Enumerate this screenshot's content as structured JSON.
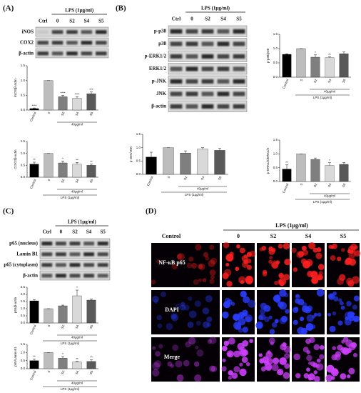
{
  "panel_labels": [
    "(A)",
    "(B)",
    "(C)",
    "(D)"
  ],
  "blots": [
    {
      "treatment": "LPS (1μg/ml)",
      "lanes": [
        "Ctrl",
        "0",
        "S2",
        "S4",
        "S5"
      ],
      "rows": [
        "iNOS",
        "COX2",
        "β-actin"
      ]
    },
    {
      "treatment": "LPS (1μg/ml)",
      "lanes": [
        "Ctrl",
        "0",
        "S2",
        "S4",
        "S5"
      ],
      "rows": [
        "p-p38",
        "p38",
        "p-ERK1/2",
        "ERK1/2",
        "p-JNK",
        "JNK",
        "β-actin"
      ]
    },
    {
      "treatment": "LPS (1μg/ml)",
      "lanes": [
        "Ctrl",
        "0",
        "S2",
        "S4",
        "S5"
      ],
      "rows": [
        "p65 (nucleus)",
        "Lamin B1",
        "p65 (cytoplasm)",
        "β-actin"
      ]
    }
  ],
  "microscopy": {
    "treatment": "LPS (1μg/ml)",
    "columns": [
      "Control",
      "0",
      "S2",
      "S4",
      "S5"
    ],
    "rows": [
      "NF-κB p65",
      "DAPI",
      "Merge"
    ]
  },
  "chart_data": [
    {
      "type": "bar",
      "ylabel": "iNOS/β-actin",
      "categories": [
        "Control",
        "0",
        "S2",
        "S4",
        "S5"
      ],
      "values": [
        0.05,
        1.0,
        0.45,
        0.4,
        0.55
      ],
      "errors": [
        0.02,
        0.0,
        0.05,
        0.05,
        0.06
      ],
      "colors": [
        "#000000",
        "#bdbdbd",
        "#7f7f7f",
        "#d9d9d9",
        "#595959"
      ],
      "ylim": [
        0,
        1.5
      ],
      "yticks": [
        {
          "value": 0,
          "label": "0.0"
        },
        0.5,
        {
          "value": 1,
          "label": "1.0"
        },
        1.5
      ],
      "annotations": [
        "****",
        null,
        "****",
        "****",
        "***"
      ],
      "group_label": "40μg/ml"
    },
    {
      "type": "bar",
      "ylabel": "COX2/β-actin",
      "categories": [
        "Control",
        "0",
        "S2",
        "S4",
        "S5"
      ],
      "values": [
        0.55,
        1.0,
        0.6,
        0.55,
        0.5
      ],
      "errors": [
        0.08,
        0.0,
        0.08,
        0.07,
        0.05
      ],
      "colors": [
        "#000000",
        "#bdbdbd",
        "#7f7f7f",
        "#d9d9d9",
        "#595959"
      ],
      "ylim": [
        0,
        1.5
      ],
      "yticks": [
        {
          "value": 0,
          "label": "0.0"
        },
        0.5,
        {
          "value": 1,
          "label": "1.0"
        },
        1.5
      ],
      "annotations": [
        "**",
        null,
        "*",
        "**",
        "**"
      ],
      "group_label": "40μg/ml",
      "xlabel": "LPS (1μg/ml)"
    },
    {
      "type": "bar",
      "ylabel": "p-p38/p38",
      "categories": [
        "Control",
        "0",
        "S2",
        "S4",
        "S5"
      ],
      "values": [
        0.8,
        1.0,
        0.7,
        0.68,
        0.82
      ],
      "errors": [
        0.02,
        0.0,
        0.08,
        0.03,
        0.06
      ],
      "colors": [
        "#000000",
        "#bdbdbd",
        "#7f7f7f",
        "#d9d9d9",
        "#595959"
      ],
      "ylim": [
        0,
        1.5
      ],
      "yticks": [
        {
          "value": 0,
          "label": "0.0"
        },
        0.5,
        {
          "value": 1,
          "label": "1.0"
        },
        1.5
      ],
      "annotations": [
        null,
        null,
        "*",
        "**",
        null
      ],
      "group_label": "40μg/ml",
      "xlabel": "LPS (1μg/ml)"
    },
    {
      "type": "bar",
      "ylabel": "p-JNK/JNK",
      "categories": [
        "Control",
        "0",
        "S2",
        "S4",
        "S5"
      ],
      "values": [
        0.65,
        1.0,
        0.8,
        0.95,
        0.9
      ],
      "errors": [
        0.18,
        0.0,
        0.08,
        0.05,
        0.07
      ],
      "colors": [
        "#000000",
        "#bdbdbd",
        "#7f7f7f",
        "#d9d9d9",
        "#595959"
      ],
      "ylim": [
        0,
        1.5
      ],
      "yticks": [
        {
          "value": 0,
          "label": "0.0"
        },
        0.5,
        {
          "value": 1,
          "label": "1.0"
        },
        1.5
      ],
      "group_label": "40μg/ml",
      "xlabel": "LPS (1μg/ml)"
    },
    {
      "type": "bar",
      "ylabel": "p-ERK1/2/ERK1/2",
      "categories": [
        "Control",
        "0",
        "S2",
        "S4",
        "S5"
      ],
      "values": [
        0.45,
        1.0,
        0.8,
        0.58,
        0.62
      ],
      "errors": [
        0.15,
        0.0,
        0.05,
        0.1,
        0.07
      ],
      "colors": [
        "#000000",
        "#bdbdbd",
        "#7f7f7f",
        "#d9d9d9",
        "#595959"
      ],
      "ylim": [
        0,
        1.5
      ],
      "yticks": [
        {
          "value": 0,
          "label": "0.0"
        },
        0.5,
        {
          "value": 1,
          "label": "1.0"
        },
        1.5
      ],
      "annotations": [
        "**",
        null,
        null,
        "*",
        null
      ],
      "group_label": "40μg/ml",
      "xlabel": "LPS (1μg/ml)"
    },
    {
      "type": "bar",
      "ylabel": "p65/β-actin",
      "categories": [
        "Control",
        "0",
        "S2",
        "S4",
        "S5"
      ],
      "values": [
        1.55,
        1.0,
        1.2,
        1.9,
        1.6
      ],
      "errors": [
        0.08,
        0.0,
        0.05,
        0.4,
        0.08
      ],
      "colors": [
        "#000000",
        "#bdbdbd",
        "#7f7f7f",
        "#d9d9d9",
        "#595959"
      ],
      "ylim": [
        0,
        2.5
      ],
      "yticks": [
        {
          "value": 0,
          "label": "0.0"
        },
        0.5,
        {
          "value": 1,
          "label": "1.0"
        },
        1.5,
        {
          "value": 2,
          "label": "2.0"
        },
        2.5
      ],
      "annotations": [
        null,
        null,
        null,
        "*",
        null
      ],
      "group_label": "40μg/ml",
      "xlabel": "LPS (1μg/ml)"
    },
    {
      "type": "bar",
      "ylabel": "p65/Lamin B1",
      "categories": [
        "Control",
        "0",
        "S2",
        "S4",
        "S5"
      ],
      "values": [
        0.5,
        1.0,
        0.65,
        0.42,
        0.45
      ],
      "errors": [
        0.1,
        0.0,
        0.1,
        0.04,
        0.1
      ],
      "colors": [
        "#000000",
        "#bdbdbd",
        "#7f7f7f",
        "#d9d9d9",
        "#595959"
      ],
      "ylim": [
        0,
        1.5
      ],
      "yticks": [
        {
          "value": 0,
          "label": "0.0"
        },
        0.5,
        {
          "value": 1,
          "label": "1.0"
        },
        1.5
      ],
      "annotations": [
        "**",
        null,
        "*",
        "**",
        "**"
      ],
      "group_label": "40μg/ml",
      "xlabel": "LPS (1μg/ml)"
    }
  ]
}
